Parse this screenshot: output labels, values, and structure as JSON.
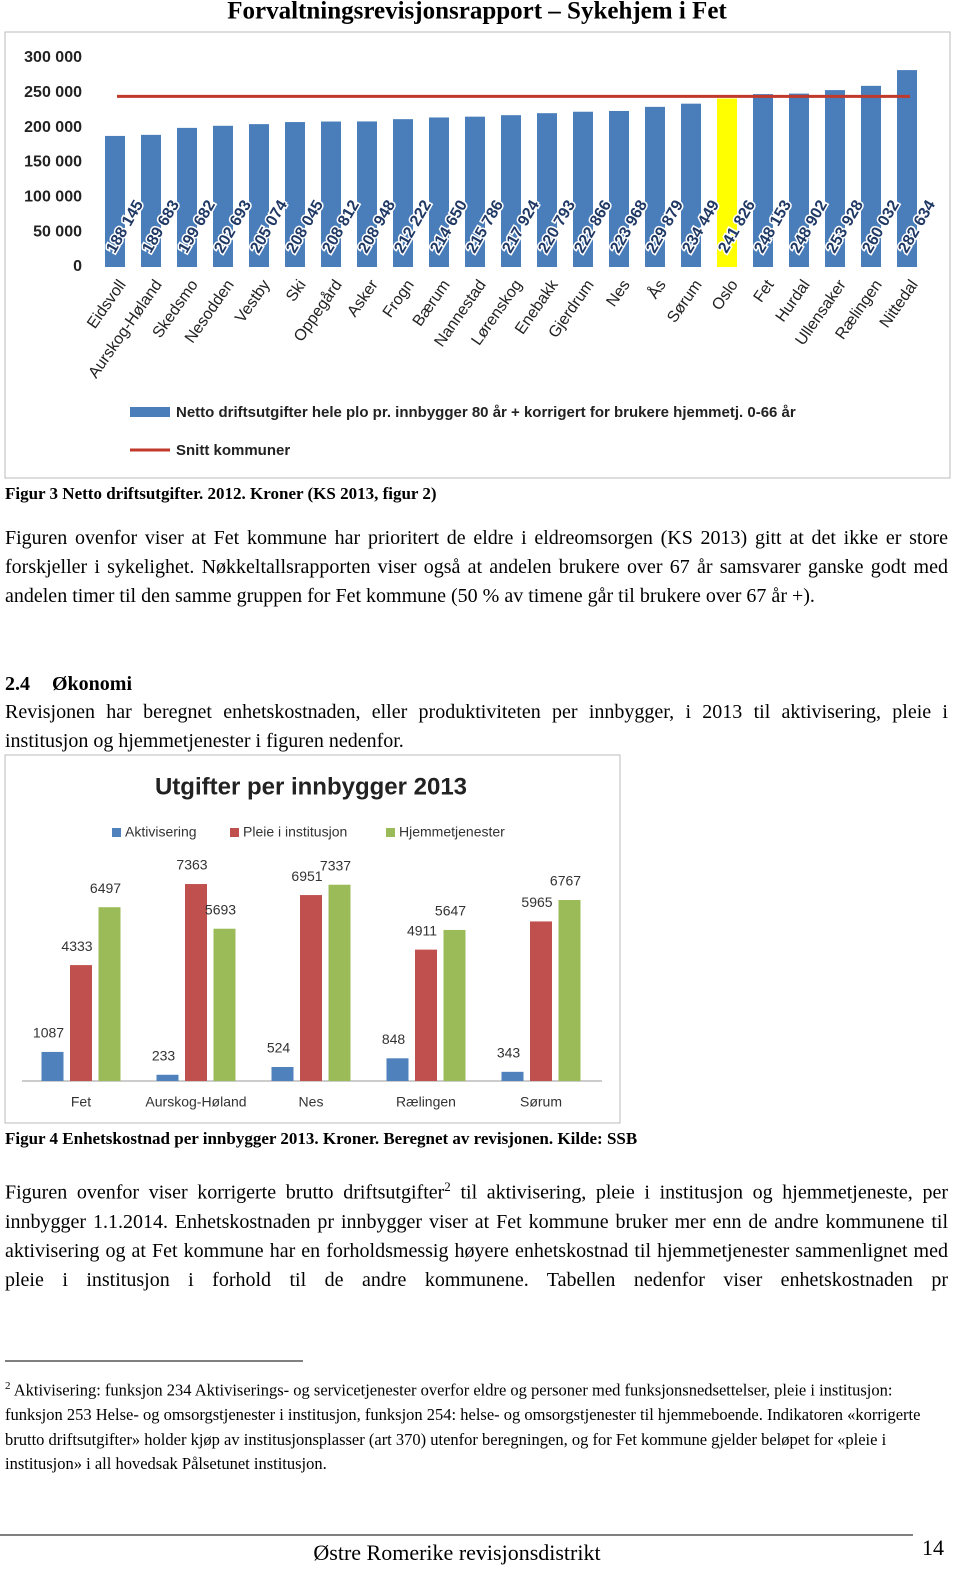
{
  "header": {
    "title": "Forvaltningsrevisjonsrapport – Sykehjem i Fet"
  },
  "chart_data": [
    {
      "type": "bar",
      "categories": [
        "Eidsvoll",
        "Aurskog-Høland",
        "Skedsmo",
        "Nesodden",
        "Vestby",
        "Ski",
        "Oppegård",
        "Asker",
        "Frogn",
        "Bærum",
        "Nannestad",
        "Lørenskog",
        "Enebakk",
        "Gjerdrum",
        "Nes",
        "Ås",
        "Sørum",
        "Oslo",
        "Fet",
        "Hurdal",
        "Ullensaker",
        "Rælingen",
        "Nittedal"
      ],
      "series": [
        {
          "name": "Netto driftsutgifter hele plo pr. innbygger 80 år + korrigert for brukere hjemmetj. 0-66 år",
          "color": "#4a7ebb",
          "values": [
            188145,
            189683,
            199682,
            202693,
            205074,
            208045,
            208812,
            208948,
            212222,
            214650,
            215786,
            217924,
            220793,
            222866,
            223968,
            229879,
            234449,
            241826,
            248153,
            248902,
            253928,
            260032,
            282634
          ],
          "value_labels": [
            "188 145",
            "189 683",
            "199 682",
            "202 693",
            "205 074",
            "208 045",
            "208 812",
            "208 948",
            "212 222",
            "214 650",
            "215 786",
            "217 924",
            "220 793",
            "222 866",
            "223 968",
            "229 879",
            "234 449",
            "241 826",
            "248 153",
            "248 902",
            "253 928",
            "260 032",
            "282 634"
          ],
          "colors": [
            "#4a7ebb",
            "#4a7ebb",
            "#4a7ebb",
            "#4a7ebb",
            "#4a7ebb",
            "#4a7ebb",
            "#4a7ebb",
            "#4a7ebb",
            "#4a7ebb",
            "#4a7ebb",
            "#4a7ebb",
            "#4a7ebb",
            "#4a7ebb",
            "#4a7ebb",
            "#4a7ebb",
            "#4a7ebb",
            "#4a7ebb",
            "#ffff00",
            "#4a7ebb",
            "#4a7ebb",
            "#4a7ebb",
            "#4a7ebb",
            "#4a7ebb"
          ]
        }
      ],
      "reference_line": {
        "name": "Snitt kommuner",
        "value": 245000,
        "color": "#c0392b"
      },
      "ylim": [
        0,
        300000
      ],
      "yticks": [
        0,
        {
          "value": 50000,
          "label": "50 000"
        },
        {
          "value": 100000,
          "label": "100 000"
        },
        {
          "value": 150000,
          "label": "150 000"
        },
        {
          "value": 200000,
          "label": "200 000"
        },
        {
          "value": 250000,
          "label": "250 000"
        },
        {
          "value": 300000,
          "label": "300 000"
        }
      ],
      "grid": false
    },
    {
      "type": "bar",
      "title": "Utgifter per innbygger 2013",
      "categories": [
        "Fet",
        "Aurskog-Høland",
        "Nes",
        "Rælingen",
        "Sørum"
      ],
      "series": [
        {
          "name": "Aktivisering",
          "color": "#4f81bd",
          "values": [
            1087,
            233,
            524,
            848,
            343
          ]
        },
        {
          "name": "Pleie i institusjon",
          "color": "#c0504d",
          "values": [
            4333,
            7363,
            6951,
            4911,
            5965
          ]
        },
        {
          "name": "Hjemmetjenester",
          "color": "#9bbb59",
          "values": [
            6497,
            5693,
            7337,
            5647,
            6767
          ]
        }
      ],
      "ylim": [
        0,
        8000
      ],
      "grid": false
    }
  ],
  "captions": [
    "Figur 3 Netto driftsutgifter. 2012. Kroner (KS 2013, figur 2)",
    "Figur 4 Enhetskostnad per innbygger 2013. Kroner. Beregnet av revisjonen. Kilde: SSB"
  ],
  "paragraphs": [
    "Figuren ovenfor viser at Fet kommune har prioritert de eldre i eldreomsorgen (KS 2013) gitt at det ikke er store forskjeller i sykelighet. Nøkkeltallsrapporten viser også at andelen brukere over 67 år samsvarer ganske godt med andelen timer til den samme gruppen for Fet kommune (50 % av timene går til brukere over 67 år +).",
    "Revisjonen har beregnet enhetskostnaden, eller produktiviteten per innbygger, i 2013 til aktivisering, pleie i institusjon og hjemmetjenester i figuren nedenfor."
  ],
  "heading": {
    "number": "2.4",
    "title": "Økonomi"
  },
  "paragraph_with_note": {
    "before": "Figuren ovenfor viser korrigerte brutto driftsutgifter",
    "note_ref": "2",
    "after": " til aktivisering, pleie i institusjon og hjemmetjeneste, per innbygger 1.1.2014. Enhetskostnaden pr innbygger viser at Fet kommune bruker mer enn de andre kommunene til aktivisering og at Fet kommune har en forholdsmessig høyere enhetskostnad til hjemmetjenester sammenlignet med pleie i institusjon i forhold til de andre kommunene. Tabellen nedenfor viser enhetskostnaden pr"
  },
  "footnote": {
    "number": "2",
    "text": "Aktivisering: funksjon 234 Aktiviserings- og servicetjenester overfor eldre og personer med funksjonsnedsettelser, pleie i institusjon: funksjon 253 Helse- og omsorgstjenester i institusjon, funksjon 254: helse- og omsorgstjenester til hjemmeboende. Indikatoren «korrigerte brutto driftsutgifter» holder kjøp av institusjonsplasser (art 370) utenfor beregningen, og for Fet kommune gjelder beløpet for «pleie i institusjon» i all hovedsak Pålsetunet institusjon."
  },
  "footer": {
    "organization": "Østre Romerike revisjonsdistrikt",
    "page_number": "14"
  }
}
